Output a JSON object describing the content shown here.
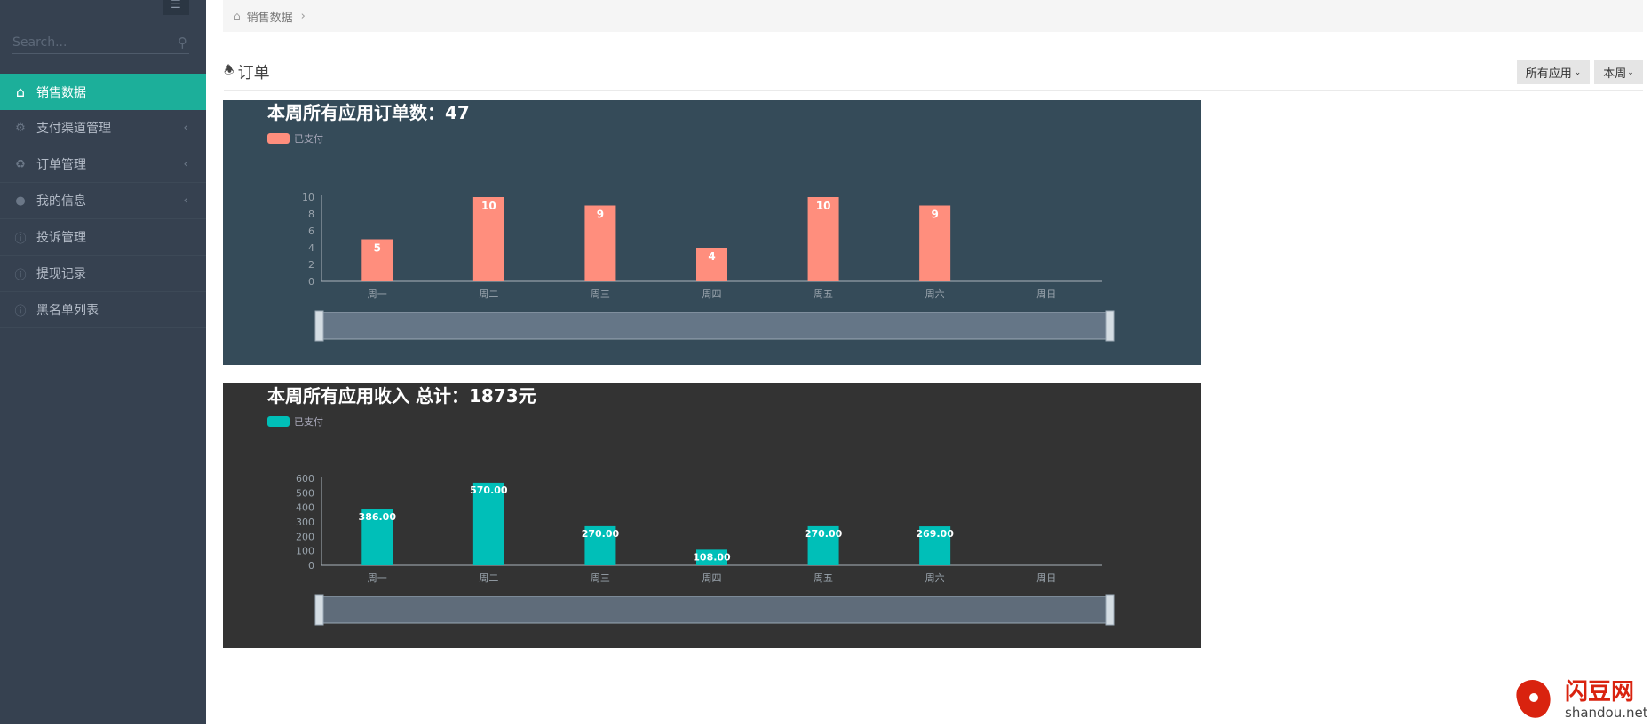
{
  "sidebar": {
    "search_placeholder": "Search...",
    "items": [
      {
        "label": "销售数据",
        "icon": "home-icon",
        "active": true
      },
      {
        "label": "支付渠道管理",
        "icon": "gears-icon",
        "expandable": true
      },
      {
        "label": "订单管理",
        "icon": "recycle-icon",
        "expandable": true
      },
      {
        "label": "我的信息",
        "icon": "user-icon",
        "expandable": true
      },
      {
        "label": "投诉管理",
        "icon": "info-icon"
      },
      {
        "label": "提现记录",
        "icon": "info-icon"
      },
      {
        "label": "黑名单列表",
        "icon": "info-icon"
      }
    ]
  },
  "breadcrumb": {
    "items": [
      "销售数据"
    ]
  },
  "section": {
    "title": "订单"
  },
  "filters": {
    "app": "所有应用",
    "period": "本周"
  },
  "colors": {
    "sidebar": "#364150",
    "accent": "#1caf9a",
    "chart1_bg": "#354b59",
    "chart1_bar": "#ff8e7d",
    "chart2_bg": "#333333",
    "chart2_bar": "#00bfb8"
  },
  "chart_data": [
    {
      "type": "bar",
      "title": "本周所有应用订单数：47",
      "legend": [
        "已支付"
      ],
      "categories": [
        "周一",
        "周二",
        "周三",
        "周四",
        "周五",
        "周六",
        "周日"
      ],
      "series": [
        {
          "name": "已支付",
          "values": [
            5,
            10,
            9,
            4,
            10,
            9,
            0
          ],
          "labels": [
            "5",
            "10",
            "9",
            "4",
            "10",
            "9",
            ""
          ]
        }
      ],
      "yticks": [
        "0",
        "2",
        "4",
        "6",
        "8",
        "10"
      ],
      "ylim": [
        0,
        10
      ],
      "grid": false,
      "legend_position": "top-left",
      "datazoom": true
    },
    {
      "type": "bar",
      "title": "本周所有应用收入 总计：1873元",
      "legend": [
        "已支付"
      ],
      "categories": [
        "周一",
        "周二",
        "周三",
        "周四",
        "周五",
        "周六",
        "周日"
      ],
      "series": [
        {
          "name": "已支付",
          "values": [
            386,
            570,
            270,
            108,
            270,
            269,
            0
          ],
          "labels": [
            "386.00",
            "570.00",
            "270.00",
            "108.00",
            "270.00",
            "269.00",
            ""
          ]
        }
      ],
      "yticks": [
        "0",
        "100",
        "200",
        "300",
        "400",
        "500",
        "600"
      ],
      "ylim": [
        0,
        600
      ],
      "grid": false,
      "legend_position": "top-left",
      "datazoom": true
    }
  ],
  "watermark": {
    "text": "闪豆网",
    "url_text": "shandou.net"
  }
}
